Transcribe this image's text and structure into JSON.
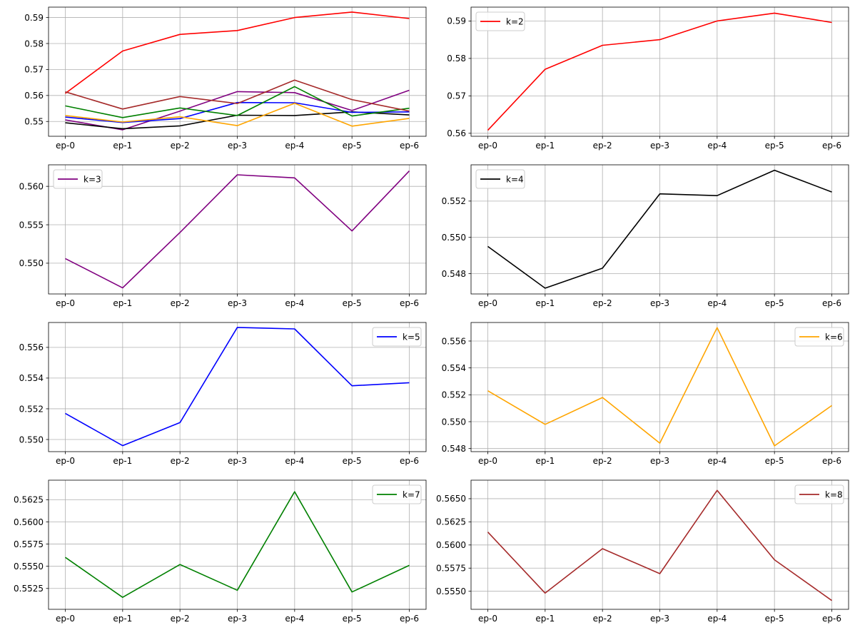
{
  "chart_data": [
    {
      "type": "line",
      "categories": [
        "ep-0",
        "ep-1",
        "ep-2",
        "ep-3",
        "ep-4",
        "ep-5",
        "ep-6"
      ],
      "yticks": [
        "0.55",
        "0.56",
        "0.57",
        "0.58",
        "0.59"
      ],
      "ylim": [
        0.5443,
        0.594
      ],
      "grid": true,
      "legend": null,
      "series": [
        {
          "color": "#ff0000",
          "values": [
            0.5608,
            0.5771,
            0.5835,
            0.585,
            0.59,
            0.5921,
            0.5896
          ]
        },
        {
          "color": "#800080",
          "values": [
            0.5506,
            0.5468,
            0.554,
            0.5615,
            0.5611,
            0.5542,
            0.562
          ]
        },
        {
          "color": "#000000",
          "values": [
            0.5495,
            0.5472,
            0.5483,
            0.5524,
            0.5523,
            0.5537,
            0.5525
          ]
        },
        {
          "color": "#0000ff",
          "values": [
            0.5517,
            0.5496,
            0.5511,
            0.5573,
            0.5572,
            0.5535,
            0.5537
          ]
        },
        {
          "color": "#ffa500",
          "values": [
            0.5523,
            0.5498,
            0.5518,
            0.5484,
            0.557,
            0.5482,
            0.5512
          ]
        },
        {
          "color": "#008000",
          "values": [
            0.556,
            0.5515,
            0.5552,
            0.5523,
            0.5634,
            0.5521,
            0.5551
          ]
        },
        {
          "color": "#a52a2a",
          "values": [
            0.5614,
            0.5548,
            0.5596,
            0.5569,
            0.5659,
            0.5584,
            0.554
          ]
        }
      ]
    },
    {
      "type": "line",
      "categories": [
        "ep-0",
        "ep-1",
        "ep-2",
        "ep-3",
        "ep-4",
        "ep-5",
        "ep-6"
      ],
      "yticks": [
        "0.56",
        "0.57",
        "0.58",
        "0.59"
      ],
      "ylim": [
        0.5592,
        0.5937
      ],
      "grid": true,
      "legend": "top-left",
      "series": [
        {
          "name": "k=2",
          "color": "#ff0000",
          "values": [
            0.5608,
            0.5771,
            0.5835,
            0.585,
            0.59,
            0.5921,
            0.5896
          ]
        }
      ]
    },
    {
      "type": "line",
      "categories": [
        "ep-0",
        "ep-1",
        "ep-2",
        "ep-3",
        "ep-4",
        "ep-5",
        "ep-6"
      ],
      "yticks": [
        "0.550",
        "0.555",
        "0.560"
      ],
      "ylim": [
        0.546,
        0.5628
      ],
      "grid": true,
      "legend": "top-left",
      "series": [
        {
          "name": "k=3",
          "color": "#800080",
          "values": [
            0.5506,
            0.5468,
            0.554,
            0.5615,
            0.5611,
            0.5542,
            0.562
          ]
        }
      ]
    },
    {
      "type": "line",
      "categories": [
        "ep-0",
        "ep-1",
        "ep-2",
        "ep-3",
        "ep-4",
        "ep-5",
        "ep-6"
      ],
      "yticks": [
        "0.548",
        "0.550",
        "0.552"
      ],
      "ylim": [
        0.54688,
        0.554
      ],
      "grid": true,
      "legend": "top-left",
      "series": [
        {
          "name": "k=4",
          "color": "#000000",
          "values": [
            0.5495,
            0.5472,
            0.5483,
            0.5524,
            0.5523,
            0.5537,
            0.5525
          ]
        }
      ]
    },
    {
      "type": "line",
      "categories": [
        "ep-0",
        "ep-1",
        "ep-2",
        "ep-3",
        "ep-4",
        "ep-5",
        "ep-6"
      ],
      "yticks": [
        "0.550",
        "0.552",
        "0.554",
        "0.556"
      ],
      "ylim": [
        0.54921,
        0.55762
      ],
      "grid": true,
      "legend": "top-right",
      "series": [
        {
          "name": "k=5",
          "color": "#0000ff",
          "values": [
            0.5517,
            0.5496,
            0.5511,
            0.5573,
            0.5572,
            0.5535,
            0.5537
          ]
        }
      ]
    },
    {
      "type": "line",
      "categories": [
        "ep-0",
        "ep-1",
        "ep-2",
        "ep-3",
        "ep-4",
        "ep-5",
        "ep-6"
      ],
      "yticks": [
        "0.548",
        "0.550",
        "0.552",
        "0.554",
        "0.556"
      ],
      "ylim": [
        0.54777,
        0.55738
      ],
      "grid": true,
      "legend": "top-right",
      "series": [
        {
          "name": "k=6",
          "color": "#ffa500",
          "values": [
            0.5523,
            0.5498,
            0.5518,
            0.5484,
            0.557,
            0.5482,
            0.5512
          ]
        }
      ]
    },
    {
      "type": "line",
      "categories": [
        "ep-0",
        "ep-1",
        "ep-2",
        "ep-3",
        "ep-4",
        "ep-5",
        "ep-6"
      ],
      "yticks": [
        "0.5525",
        "0.5550",
        "0.5575",
        "0.5600",
        "0.5625"
      ],
      "ylim": [
        0.55015,
        0.5647
      ],
      "grid": true,
      "legend": "top-right",
      "series": [
        {
          "name": "k=7",
          "color": "#008000",
          "values": [
            0.556,
            0.5515,
            0.5552,
            0.5523,
            0.5634,
            0.5521,
            0.5551
          ]
        }
      ]
    },
    {
      "type": "line",
      "categories": [
        "ep-0",
        "ep-1",
        "ep-2",
        "ep-3",
        "ep-4",
        "ep-5",
        "ep-6"
      ],
      "yticks": [
        "0.5550",
        "0.5575",
        "0.5600",
        "0.5625",
        "0.5650"
      ],
      "ylim": [
        0.55305,
        0.567
      ],
      "grid": true,
      "legend": "top-right",
      "series": [
        {
          "name": "k=8",
          "color": "#a52a2a",
          "values": [
            0.5614,
            0.5548,
            0.5596,
            0.5569,
            0.5659,
            0.5584,
            0.554
          ]
        }
      ]
    }
  ]
}
